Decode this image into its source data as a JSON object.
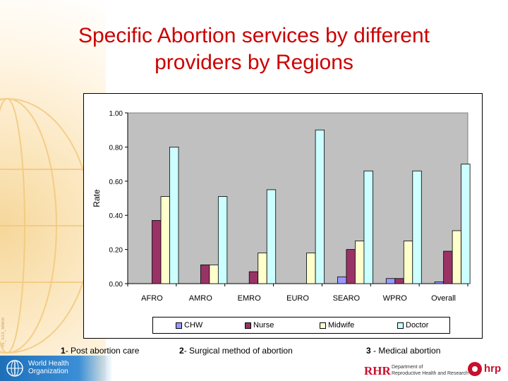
{
  "slide": {
    "title_line1": "Specific Abortion services  by different",
    "title_line2": "providers by Regions"
  },
  "chart_data": {
    "type": "bar",
    "ylabel": "Rate",
    "xlabel": "",
    "ylim": [
      0,
      1.0
    ],
    "yticks": [
      "0.00",
      "0.20",
      "0.40",
      "0.60",
      "0.80",
      "1.00"
    ],
    "categories": [
      "AFRO",
      "AMRO",
      "EMRO",
      "EURO",
      "SEARO",
      "WPRO",
      "Overall"
    ],
    "legend_position": "bottom",
    "plot_background": "#c0c0c0",
    "series": [
      {
        "name": "CHW",
        "color": "#9999ff",
        "values": [
          0.0,
          0.0,
          0.0,
          0.0,
          0.04,
          0.03,
          0.01
        ]
      },
      {
        "name": "Nurse",
        "color": "#993366",
        "values": [
          0.37,
          0.11,
          0.07,
          0.0,
          0.2,
          0.03,
          0.19
        ]
      },
      {
        "name": "Midwife",
        "color": "#ffffcc",
        "values": [
          0.51,
          0.11,
          0.18,
          0.18,
          0.25,
          0.25,
          0.31
        ]
      },
      {
        "name": "Doctor",
        "color": "#ccffff",
        "values": [
          0.8,
          0.51,
          0.55,
          0.9,
          0.66,
          0.66,
          0.7
        ]
      }
    ]
  },
  "footnotes": [
    {
      "num": "1",
      "text": "- Post abortion care"
    },
    {
      "num": "2",
      "text": "- Surgical method of abortion"
    },
    {
      "num": "3",
      "text": " -  Medical abortion"
    }
  ],
  "footer": {
    "who_line1": "World Health",
    "who_line2": "Organization",
    "rhr_logo": "RHR",
    "dept_line1": "Department of",
    "dept_line2": "Reproductive Health and Research",
    "hrp_logo": "hrp"
  },
  "side_code": "09_XXX_MM09"
}
